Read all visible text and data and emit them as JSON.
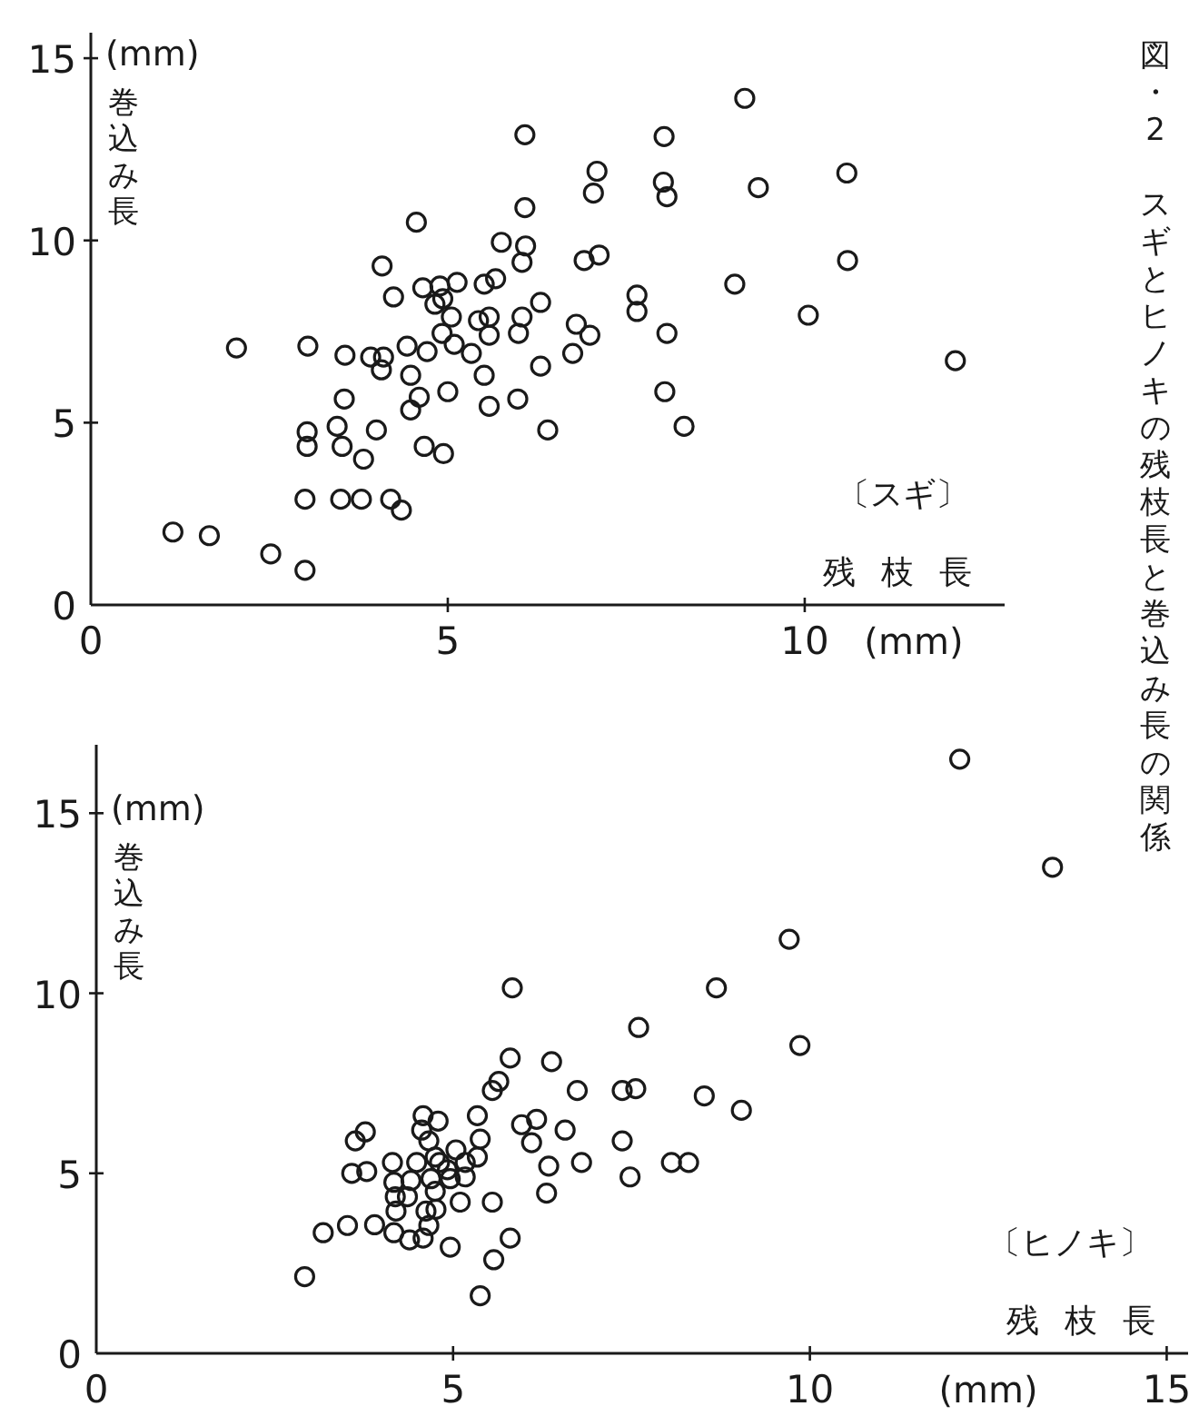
{
  "chart_data": [
    {
      "type": "scatter",
      "title": "図・2　スギとヒノキの残枝長と巻込み長の関係",
      "xlabel": "残枝長",
      "ylabel": "巻込み長",
      "annotations": [
        "(mm)",
        "(mm)",
        "〔スギ〕"
      ],
      "marker": "circle",
      "grid": false,
      "xlim": [
        0,
        12.8
      ],
      "ylim": [
        0,
        15.7
      ],
      "xticks": [
        0,
        5,
        10
      ],
      "yticks": [
        0,
        5,
        10,
        15
      ],
      "series": [
        {
          "color": "#1a1a1a",
          "x": [
            1.15,
            1.66,
            2.04,
            2.52,
            3.0,
            3.04,
            3.03,
            3.03,
            3.0,
            3.45,
            3.52,
            3.56,
            3.55,
            3.5,
            3.79,
            3.82,
            4.0,
            3.92,
            4.07,
            4.1,
            4.08,
            4.2,
            4.24,
            4.35,
            4.43,
            4.48,
            4.48,
            4.6,
            4.71,
            4.56,
            4.67,
            4.94,
            5.0,
            4.65,
            4.89,
            5.13,
            4.82,
            4.93,
            5.05,
            4.92,
            5.09,
            5.33,
            5.43,
            5.58,
            5.58,
            5.51,
            5.58,
            5.51,
            5.67,
            5.75,
            5.99,
            6.04,
            6.04,
            6.09,
            6.08,
            6.08,
            5.98,
            6.3,
            6.3,
            6.4,
            9.16,
            8.03,
            7.09,
            7.04,
            8.02,
            8.07,
            9.35,
            10.59,
            6.91,
            7.12,
            10.6,
            9.02,
            7.65,
            7.65,
            10.05,
            6.8,
            6.99,
            6.75,
            8.07,
            8.04,
            8.31,
            12.11
          ],
          "values": [
            2.0,
            1.9,
            7.05,
            1.4,
            0.95,
            7.1,
            4.75,
            4.35,
            2.9,
            4.9,
            4.35,
            6.85,
            5.65,
            2.9,
            2.9,
            4.0,
            4.8,
            6.8,
            6.45,
            6.8,
            9.3,
            2.9,
            8.45,
            2.6,
            7.1,
            6.3,
            5.35,
            5.7,
            6.95,
            10.5,
            4.35,
            4.15,
            5.85,
            8.7,
            8.75,
            8.85,
            8.25,
            8.4,
            7.9,
            7.45,
            7.15,
            6.9,
            7.8,
            7.9,
            7.4,
            6.3,
            5.45,
            8.8,
            8.95,
            9.95,
            7.45,
            7.9,
            9.4,
            9.85,
            10.9,
            12.9,
            5.65,
            8.3,
            6.55,
            4.8,
            13.9,
            12.85,
            11.9,
            11.3,
            11.6,
            11.2,
            11.45,
            11.85,
            9.45,
            9.6,
            9.45,
            8.8,
            8.5,
            8.05,
            7.95,
            7.7,
            7.4,
            6.9,
            7.45,
            5.85,
            4.9,
            6.7
          ]
        }
      ]
    },
    {
      "type": "scatter",
      "xlabel": "残枝長",
      "ylabel": "巻込み長",
      "annotations": [
        "(mm)",
        "(mm)",
        "〔ヒノキ〕"
      ],
      "marker": "circle",
      "grid": false,
      "xlim": [
        0,
        15.3
      ],
      "ylim": [
        0,
        16.9
      ],
      "xticks": [
        0,
        5,
        10,
        15
      ],
      "yticks": [
        0,
        5,
        10,
        15
      ],
      "series": [
        {
          "color": "#1a1a1a",
          "x": [
            2.92,
            3.18,
            3.52,
            3.9,
            3.63,
            3.77,
            3.58,
            3.79,
            4.15,
            4.17,
            4.19,
            4.2,
            4.17,
            4.36,
            4.41,
            4.49,
            4.58,
            4.56,
            4.66,
            4.79,
            4.75,
            4.81,
            4.69,
            4.75,
            4.76,
            4.66,
            4.58,
            4.39,
            4.96,
            4.62,
            4.92,
            5.04,
            4.96,
            5.17,
            5.1,
            5.17,
            5.34,
            5.38,
            5.34,
            5.55,
            5.57,
            5.38,
            5.8,
            5.55,
            5.64,
            5.8,
            5.83,
            5.96,
            6.17,
            6.1,
            6.38,
            6.74,
            6.57,
            6.34,
            6.31,
            6.8,
            7.6,
            7.37,
            7.56,
            7.37,
            7.48,
            8.06,
            8.3,
            8.52,
            9.04,
            8.69,
            9.71,
            9.86,
            12.1,
            13.4
          ],
          "values": [
            2.13,
            3.35,
            3.55,
            3.57,
            5.9,
            6.15,
            5.0,
            5.05,
            5.3,
            4.75,
            4.35,
            3.95,
            3.35,
            4.35,
            4.8,
            5.3,
            6.6,
            6.2,
            5.9,
            6.45,
            5.45,
            5.3,
            4.85,
            4.5,
            4.0,
            3.55,
            3.2,
            3.15,
            2.95,
            3.95,
            5.1,
            5.65,
            4.85,
            4.9,
            4.2,
            5.3,
            5.45,
            5.95,
            6.6,
            4.2,
            2.6,
            1.6,
            3.2,
            7.3,
            7.55,
            8.2,
            10.15,
            6.35,
            6.5,
            5.85,
            8.1,
            7.3,
            6.2,
            5.2,
            4.45,
            5.3,
            9.05,
            7.3,
            7.35,
            5.9,
            4.9,
            5.3,
            5.3,
            7.15,
            6.75,
            10.15,
            11.5,
            8.55,
            16.5,
            13.5
          ]
        }
      ]
    }
  ]
}
